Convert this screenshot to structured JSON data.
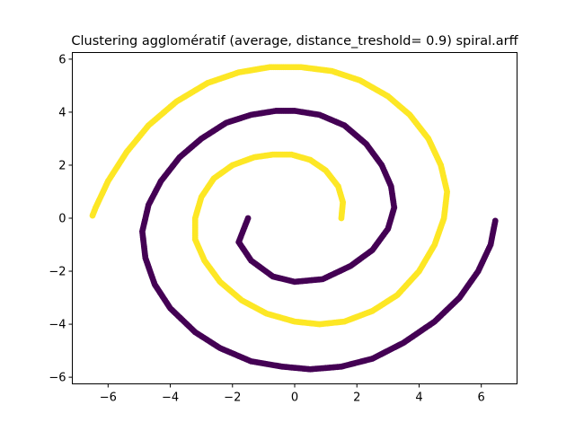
{
  "chart_data": {
    "type": "scatter",
    "title": "Clustering agglomératif (average, distance_treshold= 0.9) spiral.arff",
    "xlabel": "",
    "ylabel": "",
    "xlim": [
      -7.15,
      7.15
    ],
    "ylim": [
      -6.25,
      6.25
    ],
    "x_ticks": [
      "−6",
      "−4",
      "−2",
      "0",
      "2",
      "4",
      "6"
    ],
    "y_ticks": [
      "−6",
      "−4",
      "−2",
      "0",
      "2",
      "4",
      "6"
    ],
    "x_tick_values": [
      -6,
      -4,
      -2,
      0,
      2,
      4,
      6
    ],
    "y_tick_values": [
      -6,
      -4,
      -2,
      0,
      2,
      4,
      6
    ],
    "grid": false,
    "marker_size": 3.4,
    "series": [
      {
        "cluster": 0,
        "color": "#440154",
        "points": [
          [
            -1.5,
            0.0
          ],
          [
            -1.8,
            -0.9
          ],
          [
            -1.4,
            -1.6
          ],
          [
            -0.7,
            -2.2
          ],
          [
            0.0,
            -2.4
          ],
          [
            0.9,
            -2.3
          ],
          [
            1.8,
            -1.8
          ],
          [
            2.5,
            -1.2
          ],
          [
            3.0,
            -0.4
          ],
          [
            3.2,
            0.4
          ],
          [
            3.1,
            1.2
          ],
          [
            2.8,
            2.0
          ],
          [
            2.3,
            2.8
          ],
          [
            1.6,
            3.5
          ],
          [
            0.8,
            3.9
          ],
          [
            0.0,
            4.05
          ],
          [
            -0.6,
            4.05
          ],
          [
            -1.4,
            3.9
          ],
          [
            -2.2,
            3.6
          ],
          [
            -3.0,
            3.0
          ],
          [
            -3.7,
            2.3
          ],
          [
            -4.3,
            1.4
          ],
          [
            -4.7,
            0.5
          ],
          [
            -4.9,
            -0.5
          ],
          [
            -4.8,
            -1.5
          ],
          [
            -4.5,
            -2.5
          ],
          [
            -4.0,
            -3.4
          ],
          [
            -3.2,
            -4.3
          ],
          [
            -2.4,
            -4.9
          ],
          [
            -1.4,
            -5.4
          ],
          [
            -0.4,
            -5.6
          ],
          [
            0.5,
            -5.7
          ],
          [
            1.5,
            -5.6
          ],
          [
            2.5,
            -5.3
          ],
          [
            3.5,
            -4.7
          ],
          [
            4.5,
            -3.9
          ],
          [
            5.3,
            -3.0
          ],
          [
            5.9,
            -2.0
          ],
          [
            6.3,
            -1.0
          ],
          [
            6.45,
            -0.1
          ]
        ]
      },
      {
        "cluster": 1,
        "color": "#fde725",
        "points": [
          [
            1.5,
            0.0
          ],
          [
            1.55,
            0.6
          ],
          [
            1.4,
            1.2
          ],
          [
            1.0,
            1.8
          ],
          [
            0.5,
            2.2
          ],
          [
            -0.1,
            2.4
          ],
          [
            -0.7,
            2.4
          ],
          [
            -1.3,
            2.3
          ],
          [
            -2.0,
            2.0
          ],
          [
            -2.6,
            1.5
          ],
          [
            -3.0,
            0.8
          ],
          [
            -3.2,
            0.0
          ],
          [
            -3.2,
            -0.8
          ],
          [
            -2.9,
            -1.6
          ],
          [
            -2.4,
            -2.4
          ],
          [
            -1.7,
            -3.1
          ],
          [
            -0.9,
            -3.6
          ],
          [
            0.0,
            -3.9
          ],
          [
            0.8,
            -4.0
          ],
          [
            1.6,
            -3.9
          ],
          [
            2.5,
            -3.5
          ],
          [
            3.3,
            -2.9
          ],
          [
            4.0,
            -2.0
          ],
          [
            4.5,
            -1.0
          ],
          [
            4.8,
            0.0
          ],
          [
            4.9,
            1.0
          ],
          [
            4.7,
            2.0
          ],
          [
            4.3,
            3.0
          ],
          [
            3.7,
            3.9
          ],
          [
            3.0,
            4.6
          ],
          [
            2.1,
            5.2
          ],
          [
            1.2,
            5.55
          ],
          [
            0.2,
            5.7
          ],
          [
            -0.8,
            5.7
          ],
          [
            -1.8,
            5.5
          ],
          [
            -2.8,
            5.1
          ],
          [
            -3.8,
            4.4
          ],
          [
            -4.7,
            3.5
          ],
          [
            -5.4,
            2.5
          ],
          [
            -6.0,
            1.4
          ],
          [
            -6.4,
            0.4
          ],
          [
            -6.5,
            0.1
          ]
        ]
      }
    ]
  }
}
